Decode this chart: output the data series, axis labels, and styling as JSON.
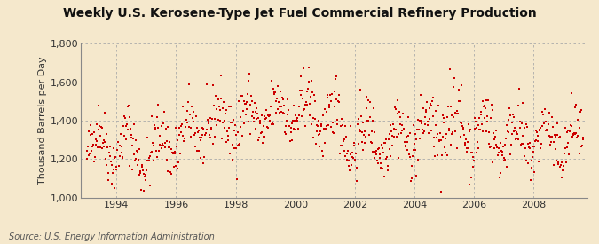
{
  "title": "Weekly U.S. Kerosene-Type Jet Fuel Commercial Refinery Production",
  "ylabel": "Thousand Barrels per Day",
  "source": "Source: U.S. Energy Information Administration",
  "dot_color": "#cc0000",
  "background_color": "#f5e8cc",
  "grid_color": "#aaaaaa",
  "ylim": [
    1000,
    1800
  ],
  "yticks": [
    1000,
    1200,
    1400,
    1600,
    1800
  ],
  "xticks": [
    1994,
    1996,
    1998,
    2000,
    2002,
    2004,
    2006,
    2008
  ],
  "xmin": 1992.8,
  "xmax": 2009.8,
  "marker_size": 4.5,
  "title_fontsize": 10,
  "tick_fontsize": 8,
  "ylabel_fontsize": 8,
  "source_fontsize": 7
}
